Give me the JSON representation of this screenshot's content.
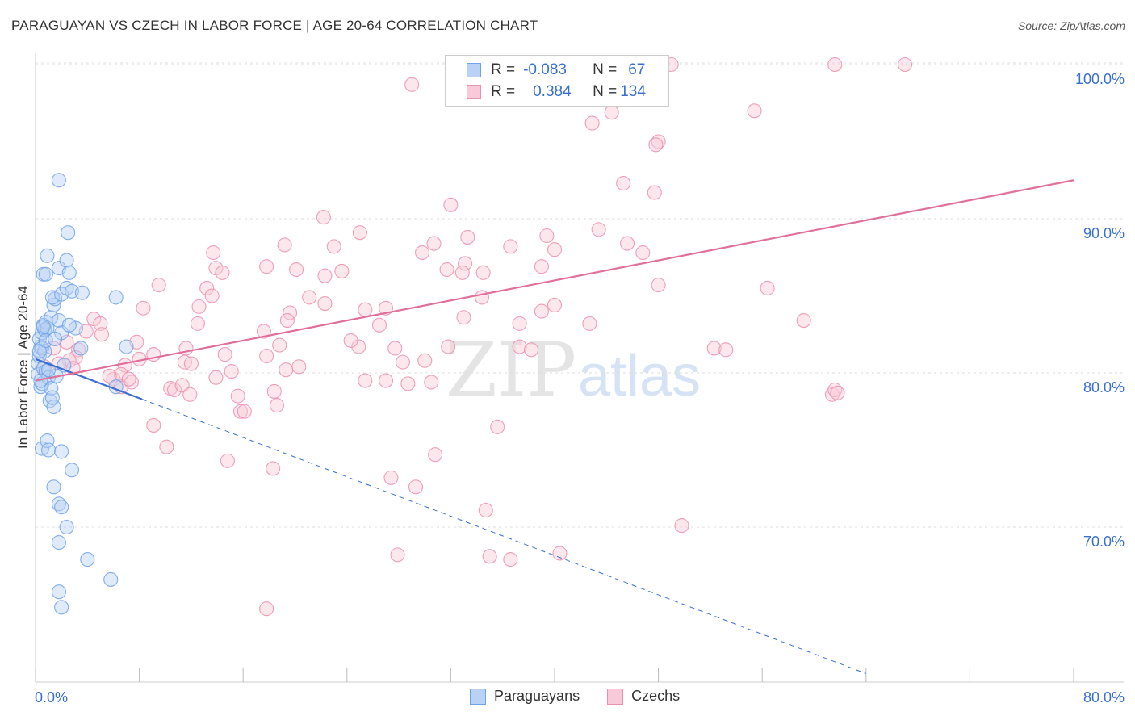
{
  "title": "PARAGUAYAN VS CZECH IN LABOR FORCE | AGE 20-64 CORRELATION CHART",
  "source": "Source: ZipAtlas.com",
  "watermark": {
    "zip": "ZIP",
    "atlas": "atlas"
  },
  "legend": {
    "r_label": "R =",
    "n_label": "N =",
    "rows": [
      {
        "name": "Paraguayans",
        "r": "-0.083",
        "n": "67"
      },
      {
        "name": "Czechs",
        "r": "0.384",
        "n": "134"
      }
    ]
  },
  "colors": {
    "paraguayan": "#6fa2e8",
    "paraguayan_fill": "#b8d1f5",
    "czech": "#eb8fae",
    "czech_fill": "#f8c9d8",
    "trend_blue": "#3a6fd0",
    "trend_pink": "#e0709a",
    "axis_text": "#3a6fd0"
  },
  "chart_data": {
    "type": "scatter",
    "title": "PARAGUAYAN VS CZECH IN LABOR FORCE | AGE 20-64 CORRELATION CHART",
    "xlabel": "",
    "ylabel": "In Labor Force | Age 20-64",
    "xlim": [
      0,
      80
    ],
    "ylim": [
      60,
      101
    ],
    "x_tick_labels": [
      "0.0%",
      "80.0%"
    ],
    "y_ticks": [
      70,
      80,
      90,
      100
    ],
    "y_tick_labels": [
      "70.0%",
      "80.0%",
      "90.0%",
      "100.0%"
    ],
    "grid": true,
    "legend_position": "top-center",
    "series": [
      {
        "name": "Paraguayans",
        "points": [
          [
            0.2,
            80.6
          ],
          [
            0.3,
            81.1
          ],
          [
            0.2,
            79.9
          ],
          [
            0.4,
            81.7
          ],
          [
            0.3,
            82.2
          ],
          [
            0.5,
            82.6
          ],
          [
            0.4,
            79.1
          ],
          [
            0.6,
            80.3
          ],
          [
            0.5,
            81.6
          ],
          [
            0.7,
            82.8
          ],
          [
            0.6,
            83.1
          ],
          [
            0.8,
            83.3
          ],
          [
            0.9,
            82.9
          ],
          [
            0.7,
            81.4
          ],
          [
            0.5,
            79.3
          ],
          [
            0.8,
            80.1
          ],
          [
            1.0,
            79.7
          ],
          [
            1.2,
            79.0
          ],
          [
            1.1,
            78.2
          ],
          [
            1.4,
            77.8
          ],
          [
            1.2,
            83.6
          ],
          [
            1.4,
            84.4
          ],
          [
            1.5,
            84.8
          ],
          [
            1.3,
            84.9
          ],
          [
            2.0,
            85.1
          ],
          [
            2.4,
            85.5
          ],
          [
            1.8,
            83.4
          ],
          [
            2.0,
            82.6
          ],
          [
            1.6,
            79.8
          ],
          [
            1.3,
            78.4
          ],
          [
            0.6,
            86.4
          ],
          [
            0.8,
            86.4
          ],
          [
            0.9,
            87.6
          ],
          [
            1.8,
            86.8
          ],
          [
            2.4,
            87.3
          ],
          [
            2.6,
            86.5
          ],
          [
            2.8,
            85.3
          ],
          [
            3.6,
            85.2
          ],
          [
            6.2,
            84.9
          ],
          [
            7.0,
            81.7
          ],
          [
            6.2,
            79.1
          ],
          [
            0.5,
            75.1
          ],
          [
            0.9,
            75.6
          ],
          [
            1.0,
            75.0
          ],
          [
            2.0,
            74.9
          ],
          [
            2.8,
            73.7
          ],
          [
            1.4,
            72.6
          ],
          [
            1.8,
            71.5
          ],
          [
            2.0,
            71.3
          ],
          [
            2.4,
            70.0
          ],
          [
            1.8,
            69.0
          ],
          [
            4.0,
            67.9
          ],
          [
            5.8,
            66.6
          ],
          [
            1.8,
            65.8
          ],
          [
            2.0,
            64.8
          ],
          [
            1.8,
            92.5
          ],
          [
            2.5,
            89.1
          ],
          [
            3.1,
            82.9
          ],
          [
            2.6,
            83.1
          ],
          [
            3.5,
            81.6
          ],
          [
            0.3,
            81.4
          ],
          [
            0.4,
            79.5
          ],
          [
            0.8,
            82.1
          ],
          [
            1.0,
            80.2
          ],
          [
            0.6,
            83.0
          ],
          [
            1.5,
            82.2
          ],
          [
            2.2,
            80.5
          ]
        ]
      },
      {
        "name": "Czechs",
        "points": [
          [
            36.1,
            99.8
          ],
          [
            49.0,
            100.0
          ],
          [
            61.6,
            100.0
          ],
          [
            67.0,
            100.0
          ],
          [
            29.0,
            98.7
          ],
          [
            55.4,
            97.0
          ],
          [
            44.4,
            96.9
          ],
          [
            42.9,
            96.2
          ],
          [
            48.0,
            95.0
          ],
          [
            47.8,
            94.8
          ],
          [
            45.3,
            92.3
          ],
          [
            47.7,
            91.7
          ],
          [
            32.0,
            90.9
          ],
          [
            22.2,
            90.1
          ],
          [
            25.0,
            89.1
          ],
          [
            33.3,
            88.8
          ],
          [
            39.4,
            88.9
          ],
          [
            30.7,
            88.4
          ],
          [
            36.6,
            88.2
          ],
          [
            23.0,
            88.2
          ],
          [
            19.2,
            88.3
          ],
          [
            43.4,
            89.3
          ],
          [
            45.6,
            88.4
          ],
          [
            40.0,
            88.0
          ],
          [
            46.8,
            87.8
          ],
          [
            13.7,
            87.8
          ],
          [
            29.8,
            87.8
          ],
          [
            17.8,
            86.9
          ],
          [
            13.9,
            86.8
          ],
          [
            20.1,
            86.7
          ],
          [
            23.6,
            86.6
          ],
          [
            31.7,
            86.7
          ],
          [
            33.1,
            87.1
          ],
          [
            32.9,
            86.5
          ],
          [
            34.5,
            86.5
          ],
          [
            22.3,
            86.3
          ],
          [
            14.4,
            86.5
          ],
          [
            39.0,
            86.9
          ],
          [
            9.5,
            85.7
          ],
          [
            13.2,
            85.5
          ],
          [
            48.0,
            85.7
          ],
          [
            56.4,
            85.5
          ],
          [
            13.6,
            85.0
          ],
          [
            21.1,
            84.9
          ],
          [
            22.3,
            84.5
          ],
          [
            8.3,
            84.2
          ],
          [
            12.6,
            84.3
          ],
          [
            25.4,
            84.1
          ],
          [
            39.0,
            84.0
          ],
          [
            19.6,
            83.9
          ],
          [
            4.5,
            83.5
          ],
          [
            5.0,
            83.2
          ],
          [
            3.9,
            82.7
          ],
          [
            5.1,
            82.5
          ],
          [
            7.8,
            82.0
          ],
          [
            11.6,
            81.6
          ],
          [
            12.5,
            83.2
          ],
          [
            17.6,
            82.7
          ],
          [
            19.4,
            83.4
          ],
          [
            37.3,
            83.2
          ],
          [
            52.3,
            81.6
          ],
          [
            59.2,
            83.4
          ],
          [
            18.8,
            81.8
          ],
          [
            14.6,
            81.2
          ],
          [
            3.3,
            81.5
          ],
          [
            3.1,
            81.0
          ],
          [
            2.6,
            80.8
          ],
          [
            1.4,
            81.6
          ],
          [
            1.8,
            80.6
          ],
          [
            2.4,
            82.0
          ],
          [
            6.9,
            80.5
          ],
          [
            8.0,
            80.9
          ],
          [
            9.1,
            81.2
          ],
          [
            11.5,
            80.7
          ],
          [
            12.0,
            80.6
          ],
          [
            17.8,
            81.1
          ],
          [
            27.7,
            81.6
          ],
          [
            24.9,
            81.7
          ],
          [
            31.8,
            81.7
          ],
          [
            28.3,
            80.7
          ],
          [
            30.0,
            80.8
          ],
          [
            37.3,
            81.7
          ],
          [
            6.0,
            79.6
          ],
          [
            6.6,
            79.1
          ],
          [
            7.4,
            79.4
          ],
          [
            6.6,
            79.9
          ],
          [
            7.2,
            79.6
          ],
          [
            13.9,
            79.7
          ],
          [
            15.1,
            80.1
          ],
          [
            19.3,
            80.2
          ],
          [
            25.4,
            79.5
          ],
          [
            27.0,
            79.5
          ],
          [
            28.7,
            79.3
          ],
          [
            30.5,
            79.4
          ],
          [
            10.4,
            79.0
          ],
          [
            10.7,
            78.9
          ],
          [
            11.3,
            79.2
          ],
          [
            11.9,
            78.6
          ],
          [
            15.6,
            78.5
          ],
          [
            18.4,
            78.8
          ],
          [
            15.8,
            77.5
          ],
          [
            16.1,
            77.5
          ],
          [
            18.6,
            77.9
          ],
          [
            2.9,
            80.3
          ],
          [
            5.7,
            79.8
          ],
          [
            9.1,
            76.6
          ],
          [
            10.1,
            75.2
          ],
          [
            14.8,
            74.3
          ],
          [
            18.3,
            73.8
          ],
          [
            27.4,
            73.2
          ],
          [
            29.3,
            72.6
          ],
          [
            35.6,
            76.5
          ],
          [
            30.8,
            74.7
          ],
          [
            34.7,
            71.1
          ],
          [
            49.8,
            70.1
          ],
          [
            27.9,
            68.2
          ],
          [
            35.0,
            68.1
          ],
          [
            36.6,
            67.9
          ],
          [
            40.4,
            68.3
          ],
          [
            17.8,
            64.7
          ],
          [
            61.4,
            78.6
          ],
          [
            61.6,
            78.9
          ],
          [
            61.8,
            78.7
          ],
          [
            53.2,
            81.5
          ],
          [
            38.2,
            81.5
          ],
          [
            42.7,
            83.2
          ],
          [
            40.0,
            84.4
          ],
          [
            34.4,
            84.9
          ],
          [
            33.0,
            83.6
          ],
          [
            27.0,
            84.2
          ],
          [
            26.5,
            83.1
          ],
          [
            24.3,
            82.1
          ],
          [
            20.3,
            80.4
          ],
          [
            0.7,
            80.4
          ]
        ]
      }
    ],
    "trend_lines": [
      {
        "series": "Paraguayans",
        "solid": [
          [
            0.0,
            80.9
          ],
          [
            8.2,
            78.3
          ]
        ],
        "dashed_to": [
          64.0,
          60.5
        ]
      },
      {
        "series": "Czechs",
        "solid": [
          [
            0.0,
            79.5
          ],
          [
            80.0,
            92.5
          ]
        ]
      }
    ]
  }
}
